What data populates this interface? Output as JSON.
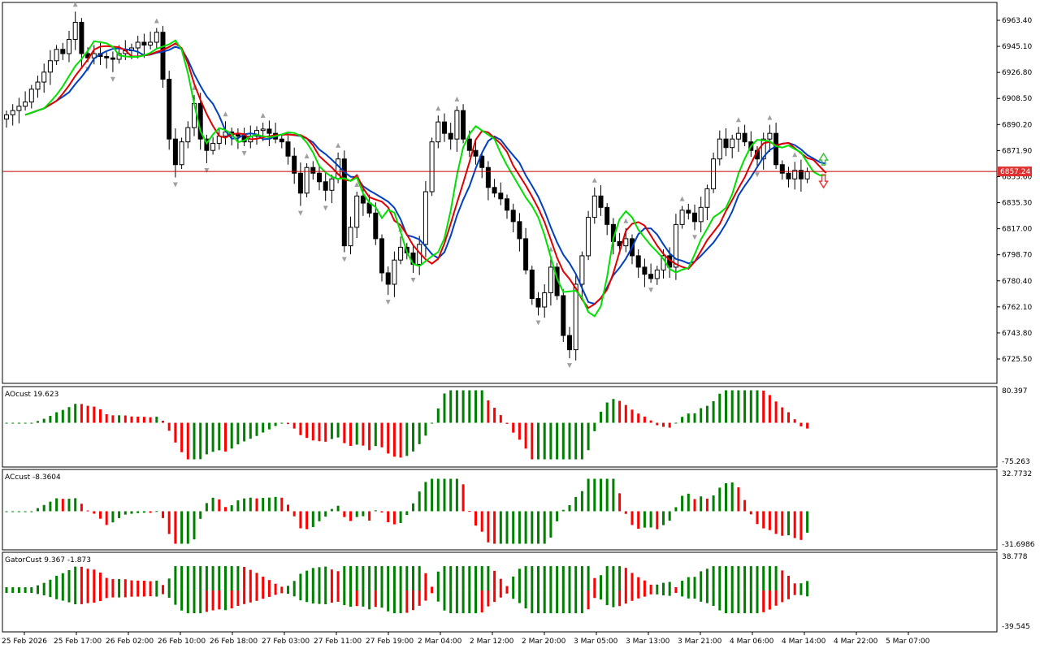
{
  "colors": {
    "background": "#ffffff",
    "frame": "#000000",
    "bull_body": "#ffffff",
    "bear_body": "#000000",
    "candle_line": "#000000",
    "fractal": "#a0a0a0",
    "ma_green": "#00e000",
    "ma_red": "#e00000",
    "ma_blue": "#0040c0",
    "price_line": "#c00000",
    "price_tag_bg": "#e03030",
    "price_tag_text": "#ffffff",
    "hist_up": "#008000",
    "hist_down": "#ff0000",
    "arrow_up": "#40c040",
    "arrow_down": "#e04040"
  },
  "main": {
    "current_price": 6857.24,
    "current_price_label": "6857.24",
    "y_ticks": [
      "6963.40",
      "6945.10",
      "6926.80",
      "6908.50",
      "6890.20",
      "6871.90",
      "6853.60",
      "6835.30",
      "6817.00",
      "6798.70",
      "6780.40",
      "6762.10",
      "6743.80",
      "6725.50"
    ]
  },
  "ao": {
    "label": "AOcust 19.623",
    "max_label": "80.397",
    "min_label": "-75.263"
  },
  "ac": {
    "label": "ACcust -8.3604",
    "max_label": "32.7732",
    "min_label": "-31.6986"
  },
  "gator": {
    "label": "GatorCust 9.367 -1.873",
    "max_label": "38.778",
    "min_label": "-39.545"
  },
  "x_labels": [
    "25 Feb 2026",
    "25 Feb 17:00",
    "26 Feb 02:00",
    "26 Feb 10:00",
    "26 Feb 18:00",
    "27 Feb 03:00",
    "27 Feb 11:00",
    "27 Feb 19:00",
    "2 Mar 04:00",
    "2 Mar 12:00",
    "2 Mar 20:00",
    "3 Mar 05:00",
    "3 Mar 13:00",
    "3 Mar 21:00",
    "4 Mar 06:00",
    "4 Mar 14:00",
    "4 Mar 22:00",
    "5 Mar 07:00"
  ],
  "chart_data": {
    "type": "candlestick",
    "price_ylim": [
      6710,
      6975
    ],
    "close": [
      6897,
      6900,
      6903,
      6906,
      6915,
      6920,
      6927,
      6935,
      6943,
      6940,
      6950,
      6962,
      6940,
      6937,
      6940,
      6938,
      6937,
      6936,
      6940,
      6942,
      6944,
      6948,
      6946,
      6948,
      6955,
      6922,
      6880,
      6862,
      6878,
      6888,
      6905,
      6880,
      6872,
      6877,
      6882,
      6885,
      6883,
      6882,
      6878,
      6882,
      6886,
      6887,
      6884,
      6880,
      6878,
      6868,
      6856,
      6842,
      6860,
      6856,
      6850,
      6844,
      6852,
      6866,
      6805,
      6818,
      6840,
      6835,
      6828,
      6810,
      6786,
      6778,
      6795,
      6804,
      6800,
      6792,
      6806,
      6843,
      6878,
      6892,
      6884,
      6880,
      6900,
      6880,
      6872,
      6868,
      6860,
      6846,
      6842,
      6838,
      6830,
      6822,
      6810,
      6788,
      6768,
      6762,
      6772,
      6790,
      6770,
      6742,
      6732,
      6778,
      6798,
      6825,
      6840,
      6832,
      6820,
      6808,
      6805,
      6810,
      6798,
      6790,
      6785,
      6782,
      6788,
      6798,
      6790,
      6820,
      6830,
      6828,
      6822,
      6832,
      6845,
      6866,
      6880,
      6874,
      6880,
      6884,
      6878,
      6872,
      6866,
      6880,
      6884,
      6862,
      6856,
      6852,
      6858,
      6852,
      6857
    ],
    "ma_green_end": 6862,
    "ma_red_end": 6857,
    "ma_blue_end": 6846
  }
}
